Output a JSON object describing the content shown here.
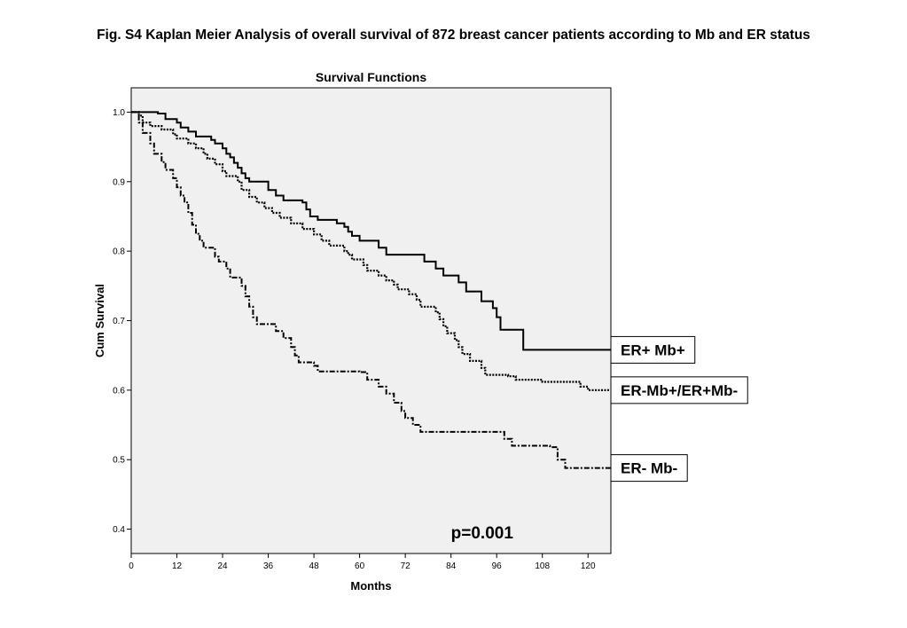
{
  "figure": {
    "caption": "Fig. S4 Kaplan Meier Analysis of overall survival of 872 breast cancer patients according to Mb and ER status"
  },
  "chart_data": {
    "type": "line",
    "title": "Survival Functions",
    "xlabel": "Months",
    "ylabel": "Cum Survival",
    "xlim": [
      0,
      126
    ],
    "ylim": [
      0.365,
      1.035
    ],
    "x_ticks": [
      0,
      12,
      24,
      36,
      48,
      60,
      72,
      84,
      96,
      108,
      120
    ],
    "y_ticks": [
      "0.4",
      "0.5",
      "0.6",
      "0.7",
      "0.8",
      "0.9",
      "1.0"
    ],
    "y_tick_values": [
      0.4,
      0.5,
      0.6,
      0.7,
      0.8,
      0.9,
      1.0
    ],
    "grid": false,
    "background": "#f0f0f0",
    "annotation": "p=0.001",
    "series": [
      {
        "name": "ER+ Mb+",
        "style": "solid",
        "points": [
          [
            0,
            1.0
          ],
          [
            7,
            0.998
          ],
          [
            9,
            0.99
          ],
          [
            12,
            0.985
          ],
          [
            13,
            0.978
          ],
          [
            15,
            0.972
          ],
          [
            17,
            0.965
          ],
          [
            21,
            0.96
          ],
          [
            22,
            0.955
          ],
          [
            24,
            0.948
          ],
          [
            25,
            0.94
          ],
          [
            26,
            0.935
          ],
          [
            27,
            0.927
          ],
          [
            28,
            0.92
          ],
          [
            29,
            0.912
          ],
          [
            30,
            0.905
          ],
          [
            31,
            0.9
          ],
          [
            36,
            0.888
          ],
          [
            38,
            0.88
          ],
          [
            40,
            0.873
          ],
          [
            45,
            0.87
          ],
          [
            46,
            0.86
          ],
          [
            47,
            0.85
          ],
          [
            49,
            0.845
          ],
          [
            54,
            0.84
          ],
          [
            56,
            0.835
          ],
          [
            57,
            0.828
          ],
          [
            58,
            0.822
          ],
          [
            60,
            0.815
          ],
          [
            65,
            0.805
          ],
          [
            67,
            0.795
          ],
          [
            77,
            0.785
          ],
          [
            80,
            0.775
          ],
          [
            82,
            0.765
          ],
          [
            86,
            0.755
          ],
          [
            88,
            0.742
          ],
          [
            92,
            0.728
          ],
          [
            95,
            0.718
          ],
          [
            96,
            0.705
          ],
          [
            97,
            0.687
          ],
          [
            103,
            0.658
          ],
          [
            126,
            0.658
          ]
        ]
      },
      {
        "name": "ER-Mb+/ER+Mb-",
        "style": "dotted",
        "points": [
          [
            0,
            1.0
          ],
          [
            2,
            0.995
          ],
          [
            3,
            0.985
          ],
          [
            5,
            0.98
          ],
          [
            8,
            0.975
          ],
          [
            11,
            0.968
          ],
          [
            12,
            0.962
          ],
          [
            15,
            0.955
          ],
          [
            17,
            0.948
          ],
          [
            19,
            0.94
          ],
          [
            20,
            0.933
          ],
          [
            22,
            0.925
          ],
          [
            24,
            0.915
          ],
          [
            25,
            0.908
          ],
          [
            28,
            0.9
          ],
          [
            29,
            0.888
          ],
          [
            31,
            0.878
          ],
          [
            33,
            0.87
          ],
          [
            35,
            0.862
          ],
          [
            37,
            0.855
          ],
          [
            39,
            0.848
          ],
          [
            42,
            0.84
          ],
          [
            45,
            0.832
          ],
          [
            48,
            0.824
          ],
          [
            50,
            0.815
          ],
          [
            52,
            0.808
          ],
          [
            56,
            0.8
          ],
          [
            57,
            0.795
          ],
          [
            58,
            0.788
          ],
          [
            61,
            0.78
          ],
          [
            62,
            0.772
          ],
          [
            65,
            0.765
          ],
          [
            67,
            0.758
          ],
          [
            69,
            0.752
          ],
          [
            70,
            0.745
          ],
          [
            73,
            0.738
          ],
          [
            75,
            0.73
          ],
          [
            76,
            0.72
          ],
          [
            80,
            0.712
          ],
          [
            81,
            0.702
          ],
          [
            82,
            0.692
          ],
          [
            83,
            0.682
          ],
          [
            85,
            0.672
          ],
          [
            86,
            0.662
          ],
          [
            87,
            0.652
          ],
          [
            89,
            0.642
          ],
          [
            92,
            0.632
          ],
          [
            93,
            0.622
          ],
          [
            99,
            0.62
          ],
          [
            101,
            0.615
          ],
          [
            108,
            0.612
          ],
          [
            118,
            0.605
          ],
          [
            120,
            0.6
          ],
          [
            126,
            0.6
          ]
        ]
      },
      {
        "name": "ER- Mb-",
        "style": "dash-dot",
        "points": [
          [
            0,
            1.0
          ],
          [
            2,
            0.985
          ],
          [
            3,
            0.97
          ],
          [
            5,
            0.955
          ],
          [
            6,
            0.94
          ],
          [
            8,
            0.928
          ],
          [
            9,
            0.917
          ],
          [
            11,
            0.905
          ],
          [
            12,
            0.892
          ],
          [
            13,
            0.88
          ],
          [
            14,
            0.87
          ],
          [
            15,
            0.855
          ],
          [
            16,
            0.838
          ],
          [
            17,
            0.825
          ],
          [
            18,
            0.815
          ],
          [
            19,
            0.805
          ],
          [
            22,
            0.792
          ],
          [
            23,
            0.785
          ],
          [
            25,
            0.775
          ],
          [
            26,
            0.762
          ],
          [
            29,
            0.75
          ],
          [
            30,
            0.735
          ],
          [
            31,
            0.72
          ],
          [
            32,
            0.705
          ],
          [
            33,
            0.695
          ],
          [
            38,
            0.685
          ],
          [
            40,
            0.675
          ],
          [
            42,
            0.662
          ],
          [
            43,
            0.65
          ],
          [
            44,
            0.64
          ],
          [
            48,
            0.635
          ],
          [
            49,
            0.627
          ],
          [
            60,
            0.626
          ],
          [
            62,
            0.615
          ],
          [
            65,
            0.605
          ],
          [
            67,
            0.595
          ],
          [
            69,
            0.582
          ],
          [
            71,
            0.57
          ],
          [
            72,
            0.56
          ],
          [
            74,
            0.55
          ],
          [
            76,
            0.54
          ],
          [
            98,
            0.53
          ],
          [
            100,
            0.52
          ],
          [
            110,
            0.518
          ],
          [
            112,
            0.5
          ],
          [
            114,
            0.488
          ],
          [
            126,
            0.488
          ]
        ]
      }
    ]
  }
}
